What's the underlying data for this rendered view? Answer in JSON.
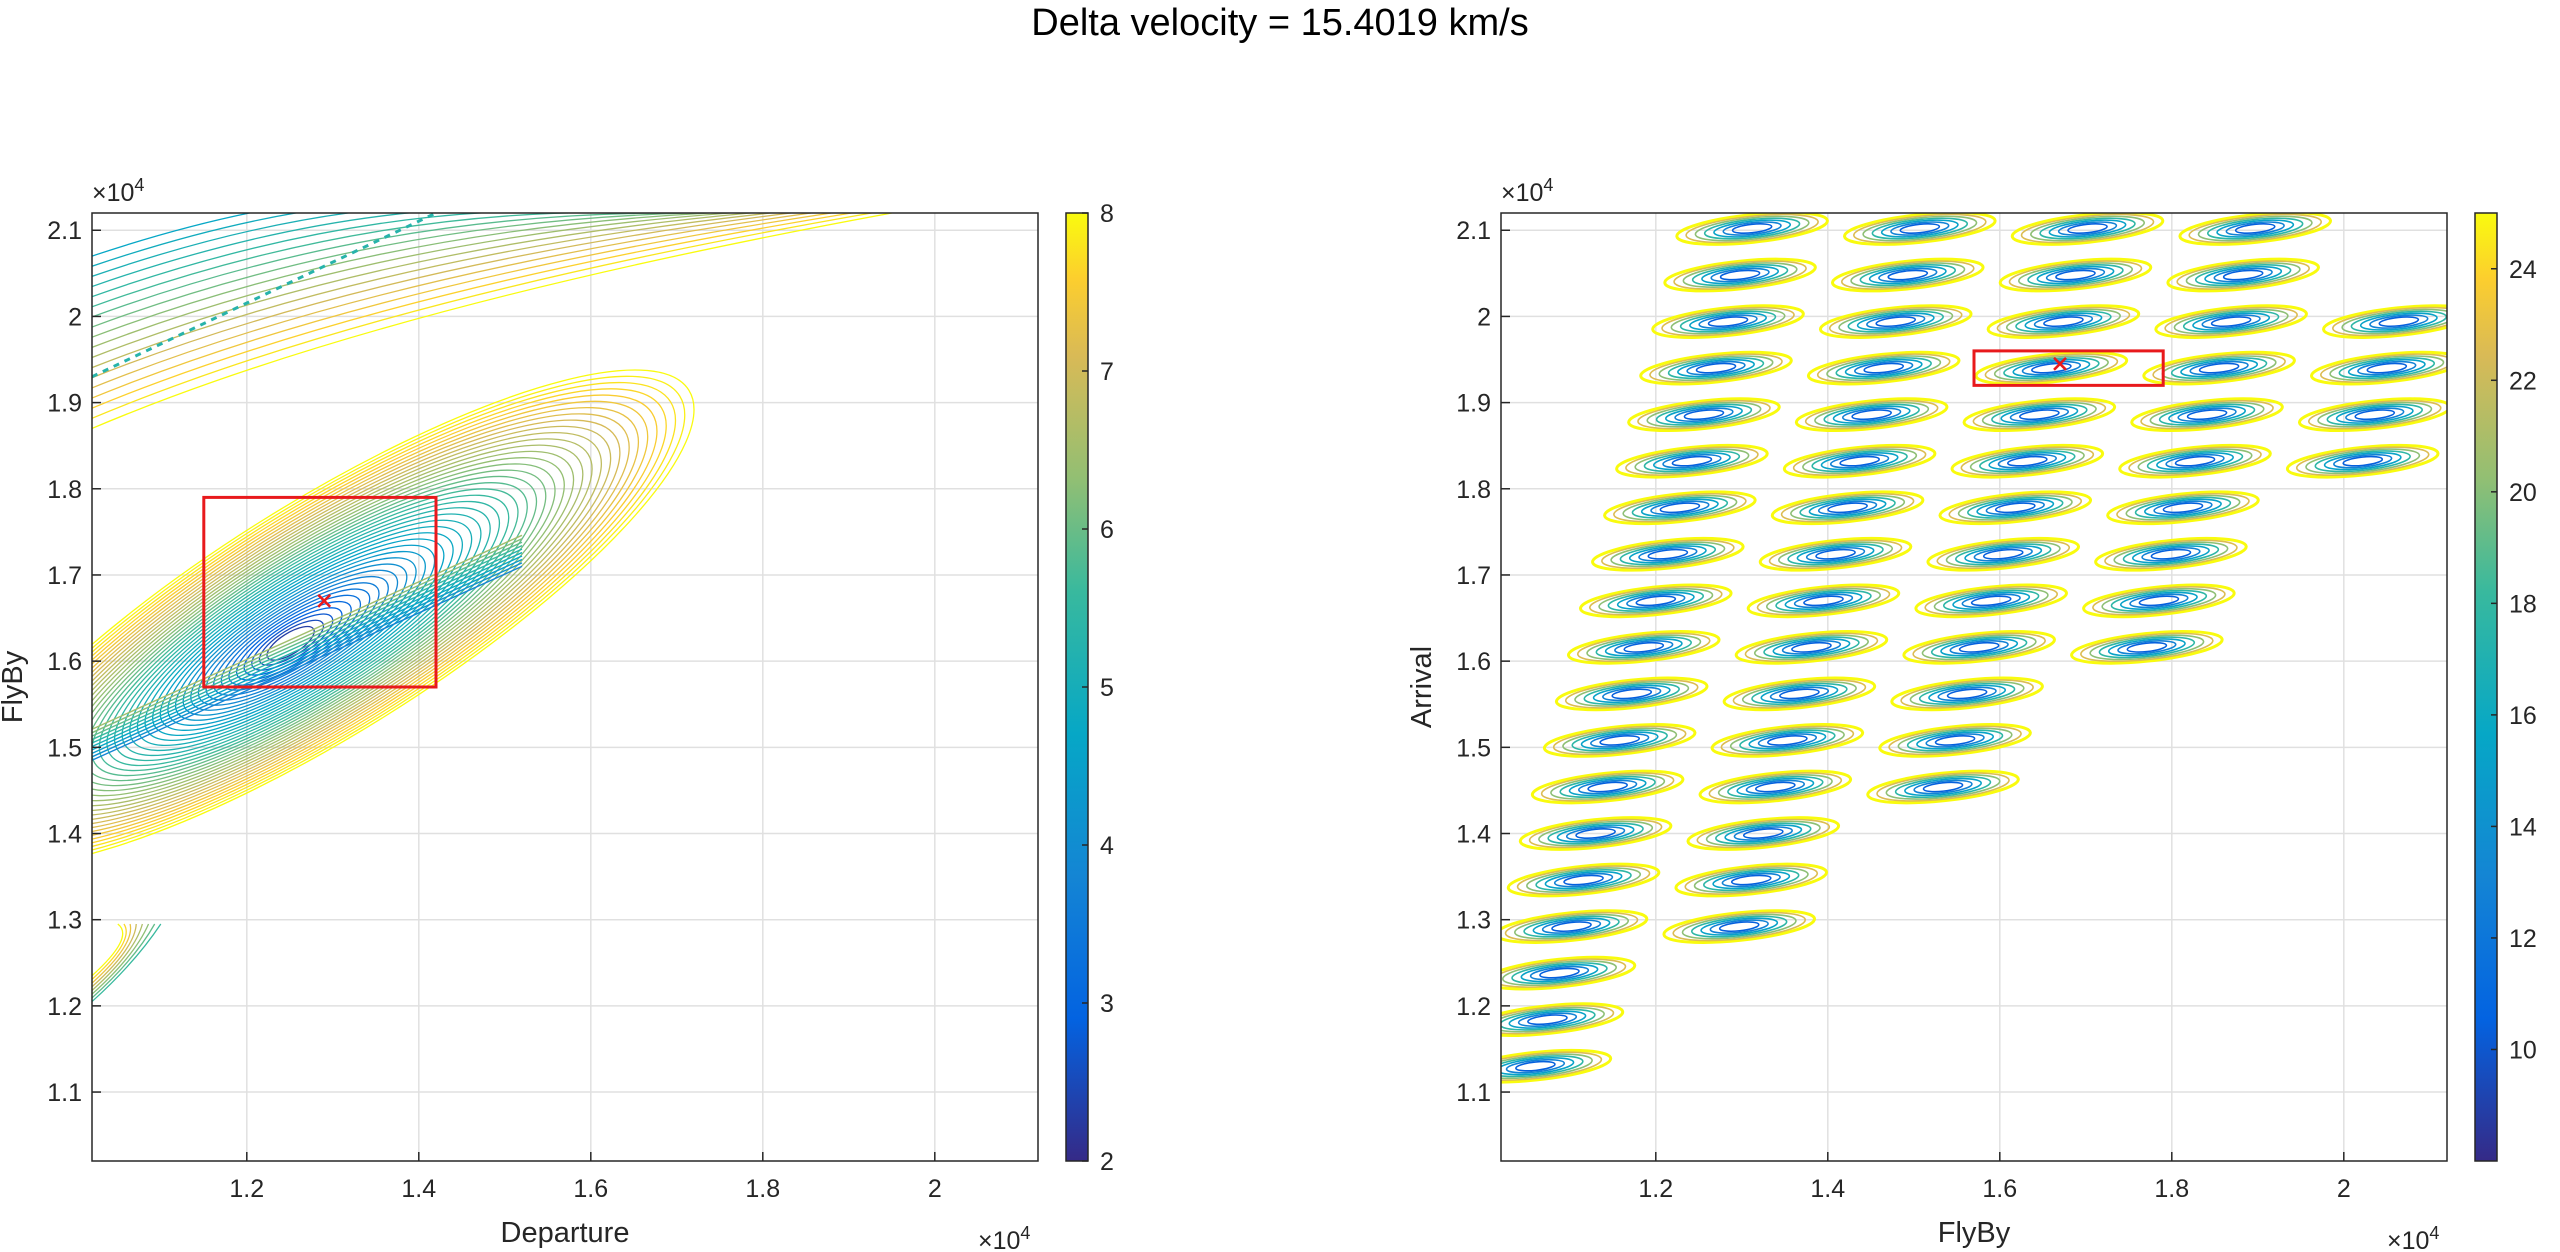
{
  "figure": {
    "title": "Delta velocity = 15.4019 km/s"
  },
  "chart_data": [
    {
      "type": "contour",
      "xlabel": "Departure",
      "ylabel": "FlyBy",
      "x_exponent": "×10",
      "y_exponent": "×10",
      "exponent_power": "4",
      "xlim": [
        10200,
        21200
      ],
      "ylim": [
        10200,
        21200
      ],
      "xticks": [
        12000,
        14000,
        16000,
        18000,
        20000
      ],
      "xtick_labels": [
        "1.2",
        "1.4",
        "1.6",
        "1.8",
        "2"
      ],
      "yticks": [
        11000,
        12000,
        13000,
        14000,
        15000,
        16000,
        17000,
        18000,
        19000,
        20000,
        21000
      ],
      "ytick_labels": [
        "1.1",
        "1.2",
        "1.3",
        "1.4",
        "1.5",
        "1.6",
        "1.7",
        "1.8",
        "1.9",
        "2",
        "2.1"
      ],
      "colorbar": {
        "min": 2,
        "max": 8,
        "ticks": [
          2,
          3,
          4,
          5,
          6,
          7,
          8
        ],
        "tick_labels": [
          "2",
          "3",
          "4",
          "5",
          "6",
          "7",
          "8"
        ]
      },
      "grid": true,
      "minimum_marker": {
        "x": 12900,
        "y": 16700
      },
      "search_box": {
        "x": [
          11500,
          14200
        ],
        "y": [
          15700,
          17900
        ]
      }
    },
    {
      "type": "contour",
      "xlabel": "FlyBy",
      "ylabel": "Arrival",
      "x_exponent": "×10",
      "y_exponent": "×10",
      "exponent_power": "4",
      "xlim": [
        10200,
        21200
      ],
      "ylim": [
        10200,
        21200
      ],
      "xticks": [
        12000,
        14000,
        16000,
        18000,
        20000
      ],
      "xtick_labels": [
        "1.2",
        "1.4",
        "1.6",
        "1.8",
        "2"
      ],
      "yticks": [
        11000,
        12000,
        13000,
        14000,
        15000,
        16000,
        17000,
        18000,
        19000,
        20000,
        21000
      ],
      "ytick_labels": [
        "1.1",
        "1.2",
        "1.3",
        "1.4",
        "1.5",
        "1.6",
        "1.7",
        "1.8",
        "1.9",
        "2",
        "2.1"
      ],
      "colorbar": {
        "min": 8,
        "max": 25,
        "ticks": [
          10,
          12,
          14,
          16,
          18,
          20,
          22,
          24
        ],
        "tick_labels": [
          "10",
          "12",
          "14",
          "16",
          "18",
          "20",
          "22",
          "24"
        ]
      },
      "grid": true,
      "minimum_marker": {
        "x": 16700,
        "y": 19450
      },
      "search_box": {
        "x": [
          15700,
          17900
        ],
        "y": [
          19200,
          19600
        ]
      }
    }
  ]
}
